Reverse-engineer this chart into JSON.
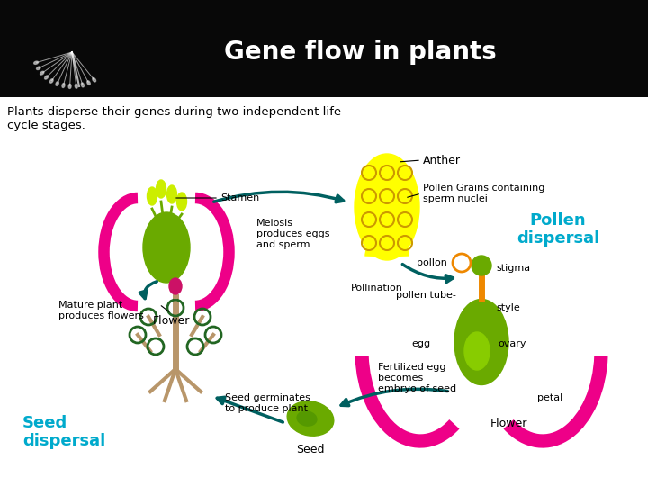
{
  "title": "Gene flow in plants",
  "subtitle_line1": "Plants disperse their genes during two independent life",
  "subtitle_line2": "cycle stages.",
  "title_bg": "#080808",
  "title_color": "#ffffff",
  "bg_color": "#ffffff",
  "label_color": "#000000",
  "teal": "#007070",
  "magenta": "#ee0088",
  "yellow": "#ffff00",
  "olive": "#6aaa00",
  "olive_dark": "#559900",
  "orange": "#ee8800",
  "tan": "#b8966a",
  "pink": "#cc1166",
  "pollen_label_color": "#00aacc",
  "seed_label_color": "#00aacc",
  "arrow_color": "#006060"
}
